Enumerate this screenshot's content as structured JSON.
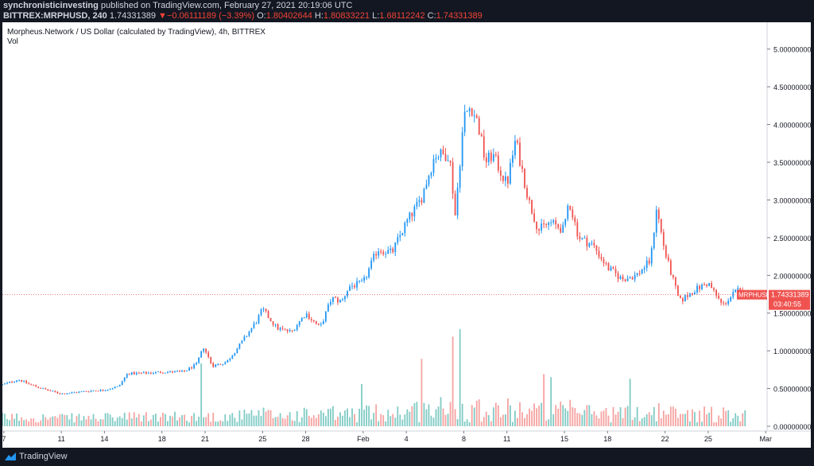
{
  "header": {
    "author": "synchronisticinvesting",
    "published": "published on TradingView.com, February 27, 2021 20:19:06 UTC",
    "symbol_interval": "BITTREX:MRPHUSD, 240",
    "last": "1.74331389",
    "change_arrow": "▼",
    "change": "−0.06111189 (−3.39%)",
    "o_label": "O:",
    "o_value": "1.80402644",
    "h_label": "H:",
    "h_value": "1.80833221",
    "l_label": "L:",
    "l_value": "1.68112242",
    "c_label": "C:",
    "c_value": "1.74331389"
  },
  "footer": {
    "brand": "TradingView"
  },
  "colors": {
    "up": "#2196f3",
    "down": "#ef5350",
    "vol_up": "#80cbc4",
    "vol_down": "#f5a3a1",
    "price_label_bg": "#ef5350",
    "background": "#ffffff",
    "frame": "#131722"
  },
  "chart_data": {
    "type": "candlestick",
    "title": "Morpheus.Network / US Dollar (calculated by TradingView), 4h, BITTREX",
    "volume_label": "Vol",
    "symbol_badge": "MRPHUSD",
    "last_price": 1.74331389,
    "last_price_text": "1.74331389",
    "countdown": "03:40:55",
    "ylim": [
      0,
      5.25
    ],
    "y_ticks": [
      5.0,
      4.5,
      4.0,
      3.5,
      3.0,
      2.5,
      2.0,
      1.5,
      1.0,
      0.5,
      0.0
    ],
    "y_tick_labels": [
      "5.00000000",
      "4.50000000",
      "4.00000000",
      "3.50000000",
      "3.00000000",
      "2.50000000",
      "2.00000000",
      "1.50000000",
      "1.00000000",
      "0.50000000",
      "0.00000000"
    ],
    "x_ticks": [
      {
        "day": 7,
        "label": "7"
      },
      {
        "day": 11,
        "label": "11"
      },
      {
        "day": 14,
        "label": "14"
      },
      {
        "day": 18,
        "label": "18"
      },
      {
        "day": 21,
        "label": "21"
      },
      {
        "day": 25,
        "label": "25"
      },
      {
        "day": 28,
        "label": "28"
      },
      {
        "day": 32,
        "label": "Feb"
      },
      {
        "day": 35,
        "label": "4"
      },
      {
        "day": 39,
        "label": "8"
      },
      {
        "day": 42,
        "label": "11"
      },
      {
        "day": 46,
        "label": "15"
      },
      {
        "day": 49,
        "label": "18"
      },
      {
        "day": 53,
        "label": "22"
      },
      {
        "day": 56,
        "label": "25"
      },
      {
        "day": 60,
        "label": "Mar"
      }
    ],
    "x_range_days": [
      6.9,
      60.1
    ],
    "start_day": 6.9,
    "bars_per_day": 6,
    "close_series": [
      {
        "day": 6.9,
        "price": 0.55
      },
      {
        "day": 8.0,
        "price": 0.62
      },
      {
        "day": 9.0,
        "price": 0.54
      },
      {
        "day": 10.0,
        "price": 0.48
      },
      {
        "day": 11.0,
        "price": 0.43
      },
      {
        "day": 12.0,
        "price": 0.45
      },
      {
        "day": 13.0,
        "price": 0.47
      },
      {
        "day": 14.0,
        "price": 0.48
      },
      {
        "day": 15.0,
        "price": 0.53
      },
      {
        "day": 15.6,
        "price": 0.7
      },
      {
        "day": 16.5,
        "price": 0.7
      },
      {
        "day": 18.0,
        "price": 0.72
      },
      {
        "day": 19.5,
        "price": 0.72
      },
      {
        "day": 20.4,
        "price": 0.82
      },
      {
        "day": 20.9,
        "price": 1.05
      },
      {
        "day": 21.5,
        "price": 0.8
      },
      {
        "day": 22.5,
        "price": 0.85
      },
      {
        "day": 23.5,
        "price": 1.1
      },
      {
        "day": 24.6,
        "price": 1.4
      },
      {
        "day": 25.0,
        "price": 1.55
      },
      {
        "day": 26.0,
        "price": 1.3
      },
      {
        "day": 27.0,
        "price": 1.25
      },
      {
        "day": 28.0,
        "price": 1.5
      },
      {
        "day": 29.0,
        "price": 1.3
      },
      {
        "day": 29.8,
        "price": 1.7
      },
      {
        "day": 30.5,
        "price": 1.65
      },
      {
        "day": 31.0,
        "price": 1.85
      },
      {
        "day": 32.0,
        "price": 1.9
      },
      {
        "day": 33.0,
        "price": 2.35
      },
      {
        "day": 34.0,
        "price": 2.3
      },
      {
        "day": 35.0,
        "price": 2.7
      },
      {
        "day": 36.0,
        "price": 3.0
      },
      {
        "day": 37.0,
        "price": 3.6
      },
      {
        "day": 38.0,
        "price": 3.6
      },
      {
        "day": 38.4,
        "price": 2.8
      },
      {
        "day": 39.0,
        "price": 4.1
      },
      {
        "day": 39.5,
        "price": 4.25
      },
      {
        "day": 40.0,
        "price": 4.0
      },
      {
        "day": 40.5,
        "price": 3.5
      },
      {
        "day": 41.0,
        "price": 3.6
      },
      {
        "day": 42.0,
        "price": 3.2
      },
      {
        "day": 42.6,
        "price": 3.8
      },
      {
        "day": 43.5,
        "price": 3.0
      },
      {
        "day": 44.2,
        "price": 2.6
      },
      {
        "day": 45.0,
        "price": 2.7
      },
      {
        "day": 46.0,
        "price": 2.6
      },
      {
        "day": 46.3,
        "price": 3.0
      },
      {
        "day": 47.0,
        "price": 2.5
      },
      {
        "day": 48.0,
        "price": 2.4
      },
      {
        "day": 49.0,
        "price": 2.1
      },
      {
        "day": 50.0,
        "price": 1.95
      },
      {
        "day": 51.0,
        "price": 2.0
      },
      {
        "day": 52.0,
        "price": 2.2
      },
      {
        "day": 52.4,
        "price": 2.9
      },
      {
        "day": 53.0,
        "price": 2.3
      },
      {
        "day": 54.0,
        "price": 1.65
      },
      {
        "day": 55.0,
        "price": 1.8
      },
      {
        "day": 56.0,
        "price": 1.9
      },
      {
        "day": 57.0,
        "price": 1.6
      },
      {
        "day": 58.0,
        "price": 1.8
      },
      {
        "day": 58.7,
        "price": 1.74
      }
    ],
    "volume_ylim": [
      0,
      1.35
    ],
    "volume_spikes": [
      {
        "day": 20.7,
        "value": 0.82
      },
      {
        "day": 31.9,
        "value": 0.55
      },
      {
        "day": 36.1,
        "value": 0.88
      },
      {
        "day": 38.2,
        "value": 1.17
      },
      {
        "day": 38.7,
        "value": 1.27
      },
      {
        "day": 44.5,
        "value": 0.68
      },
      {
        "day": 45.1,
        "value": 0.64
      },
      {
        "day": 50.5,
        "value": 0.62
      }
    ],
    "series": [
      {
        "name": "MRPHUSD"
      },
      {
        "name": "Vol"
      }
    ]
  }
}
